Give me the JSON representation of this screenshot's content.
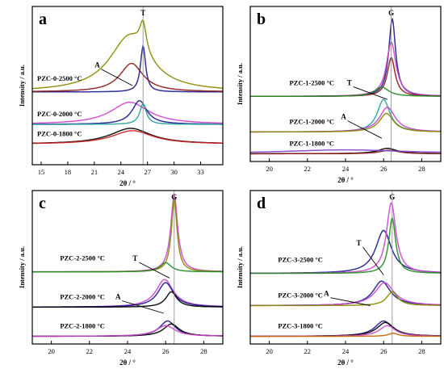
{
  "chart_data": [
    {
      "panel": "a",
      "type": "line",
      "xlabel": "2θ / °",
      "ylabel": "Intensity / a.u.",
      "xlim": [
        14,
        35.5
      ],
      "xticks": [
        15,
        18,
        21,
        24,
        27,
        30,
        33
      ],
      "grid": false,
      "peak_labels": [
        {
          "text": "T",
          "x": 26.5
        },
        {
          "text": "A",
          "x": 25.2
        }
      ],
      "groups": [
        {
          "name": "PZC-0-2500 °C",
          "baseline": 0.46,
          "curves": [
            {
              "color": "#8a8a00",
              "peaks": [
                [
                  0.18,
                  26.5,
                  0.45
                ],
                [
                  0.35,
                  25.0,
                  2.8
                ]
              ]
            },
            {
              "color": "#1a1a8c",
              "peaks": [
                [
                  0.29,
                  26.5,
                  0.35
                ]
              ]
            },
            {
              "color": "#8b1a1a",
              "peaks": [
                [
                  0.18,
                  25.2,
                  1.6
                ]
              ]
            }
          ]
        },
        {
          "name": "PZC-0-2000 °C",
          "baseline": 0.255,
          "curves": [
            {
              "color": "#cc44cc",
              "peaks": [
                [
                  0.14,
                  25.0,
                  2.6
                ]
              ]
            },
            {
              "color": "#1a1a8c",
              "peaks": [
                [
                  0.15,
                  26.1,
                  1.0
                ]
              ]
            },
            {
              "color": "#2aa0a0",
              "peaks": [
                [
                  0.13,
                  26.5,
                  0.45
                ]
              ]
            }
          ]
        },
        {
          "name": "PZC-0-1800 °C",
          "baseline": 0.13,
          "curves": [
            {
              "color": "#000000",
              "peaks": [
                [
                  0.1,
                  25.1,
                  2.8
                ]
              ]
            },
            {
              "color": "#cc2222",
              "peaks": [
                [
                  0.085,
                  25.3,
                  2.8
                ]
              ]
            }
          ]
        }
      ]
    },
    {
      "panel": "b",
      "type": "line",
      "xlabel": "2θ / °",
      "ylabel": "Intensity / a.u.",
      "xlim": [
        19,
        29
      ],
      "xticks": [
        20,
        22,
        24,
        26,
        28
      ],
      "grid": false,
      "peak_labels": [
        {
          "text": "G",
          "x": 26.4
        },
        {
          "text": "T",
          "x": 25.6
        },
        {
          "text": "A",
          "x": 25.5
        }
      ],
      "groups": [
        {
          "name": "PZC-1-2500 °C",
          "baseline": 0.42,
          "curves": [
            {
              "color": "#1a1a8c",
              "peaks": [
                [
                  0.5,
                  26.45,
                  0.22
                ]
              ]
            },
            {
              "color": "#cc44cc",
              "peaks": [
                [
                  0.35,
                  26.4,
                  0.3
                ]
              ]
            },
            {
              "color": "#8b1a1a",
              "peaks": [
                [
                  0.25,
                  26.4,
                  0.25
                ]
              ]
            },
            {
              "color": "#228b22",
              "peaks": [
                [
                  0.06,
                  25.9,
                  0.45
                ]
              ]
            }
          ]
        },
        {
          "name": "PZC-1-2000 °C",
          "baseline": 0.19,
          "curves": [
            {
              "color": "#2aa0a0",
              "peaks": [
                [
                  0.21,
                  26.0,
                  0.4
                ]
              ]
            },
            {
              "color": "#cc44cc",
              "peaks": [
                [
                  0.16,
                  26.2,
                  0.5
                ]
              ]
            },
            {
              "color": "#8a8a00",
              "peaks": [
                [
                  0.12,
                  26.15,
                  0.45
                ]
              ]
            }
          ]
        },
        {
          "name": "PZC-1-1800 °C",
          "baseline": 0.05,
          "curves": [
            {
              "color": "#000000",
              "peaks": [
                [
                  0.035,
                  26.2,
                  0.6
                ]
              ]
            },
            {
              "color": "#8b1a1a",
              "peaks": [
                [
                  0.022,
                  26.3,
                  0.6
                ]
              ]
            },
            {
              "color": "#7744cc",
              "peaks": [
                [
                  0.025,
                  24.0,
                  4.0
                ]
              ]
            }
          ]
        }
      ]
    },
    {
      "panel": "c",
      "type": "line",
      "xlabel": "2θ / °",
      "ylabel": "Intensity / a.u.",
      "xlim": [
        19,
        29
      ],
      "xticks": [
        20,
        22,
        24,
        26,
        28
      ],
      "grid": false,
      "peak_labels": [
        {
          "text": "G",
          "x": 26.45
        },
        {
          "text": "T",
          "x": 26.0
        },
        {
          "text": "A",
          "x": 25.7
        }
      ],
      "groups": [
        {
          "name": "PZC-2-2500 °C",
          "baseline": 0.47,
          "curves": [
            {
              "color": "#cc44cc",
              "peaks": [
                [
                  0.5,
                  26.45,
                  0.22
                ]
              ]
            },
            {
              "color": "#8a8a00",
              "peaks": [
                [
                  0.47,
                  26.45,
                  0.18
                ]
              ]
            },
            {
              "color": "#228b22",
              "peaks": [
                [
                  0.06,
                  26.0,
                  0.35
                ]
              ]
            }
          ]
        },
        {
          "name": "PZC-2-2000 °C",
          "baseline": 0.24,
          "curves": [
            {
              "color": "#cc44cc",
              "peaks": [
                [
                  0.18,
                  25.95,
                  0.55
                ]
              ]
            },
            {
              "color": "#1a1a8c",
              "peaks": [
                [
                  0.16,
                  26.0,
                  0.5
                ]
              ]
            },
            {
              "color": "#000000",
              "peaks": [
                [
                  0.1,
                  26.3,
                  0.35
                ]
              ]
            }
          ]
        },
        {
          "name": "PZC-2-1800 °C",
          "baseline": 0.05,
          "curves": [
            {
              "color": "#1a1a8c",
              "peaks": [
                [
                  0.1,
                  26.1,
                  0.5
                ]
              ]
            },
            {
              "color": "#000000",
              "peaks": [
                [
                  0.08,
                  26.3,
                  0.5
                ]
              ]
            },
            {
              "color": "#cc44cc",
              "peaks": [
                [
                  0.07,
                  26.0,
                  0.6
                ]
              ]
            }
          ]
        }
      ]
    },
    {
      "panel": "d",
      "type": "line",
      "xlabel": "2θ / °",
      "ylabel": "Intensity / a.u.",
      "xlim": [
        19,
        29
      ],
      "xticks": [
        20,
        22,
        24,
        26,
        28
      ],
      "grid": false,
      "peak_labels": [
        {
          "text": "G",
          "x": 26.45
        },
        {
          "text": "T",
          "x": 26.0
        },
        {
          "text": "A",
          "x": 25.2
        }
      ],
      "groups": [
        {
          "name": "PZC-3-2500 °C",
          "baseline": 0.46,
          "curves": [
            {
              "color": "#1a1a8c",
              "peaks": [
                [
                  0.28,
                  26.0,
                  0.5
                ]
              ]
            },
            {
              "color": "#cc44cc",
              "peaks": [
                [
                  0.46,
                  26.4,
                  0.3
                ]
              ]
            },
            {
              "color": "#228b22",
              "peaks": [
                [
                  0.36,
                  26.45,
                  0.22
                ]
              ]
            }
          ]
        },
        {
          "name": "PZC-3-2000 °C",
          "baseline": 0.25,
          "curves": [
            {
              "color": "#1a1a8c",
              "peaks": [
                [
                  0.16,
                  25.9,
                  0.55
                ]
              ]
            },
            {
              "color": "#cc44cc",
              "peaks": [
                [
                  0.15,
                  26.05,
                  0.6
                ]
              ]
            },
            {
              "color": "#8a8a00",
              "peaks": [
                [
                  0.09,
                  26.45,
                  0.35
                ]
              ]
            }
          ]
        },
        {
          "name": "PZC-3-1800 °C",
          "baseline": 0.05,
          "curves": [
            {
              "color": "#1a1a8c",
              "peaks": [
                [
                  0.1,
                  26.0,
                  0.55
                ]
              ]
            },
            {
              "color": "#000000",
              "peaks": [
                [
                  0.09,
                  26.1,
                  0.55
                ]
              ]
            },
            {
              "color": "#cc44cc",
              "peaks": [
                [
                  0.07,
                  26.2,
                  0.5
                ]
              ]
            },
            {
              "color": "#cc6600",
              "peaks": [
                [
                  0.02,
                  26.5,
                  0.3
                ]
              ]
            }
          ]
        }
      ]
    }
  ]
}
